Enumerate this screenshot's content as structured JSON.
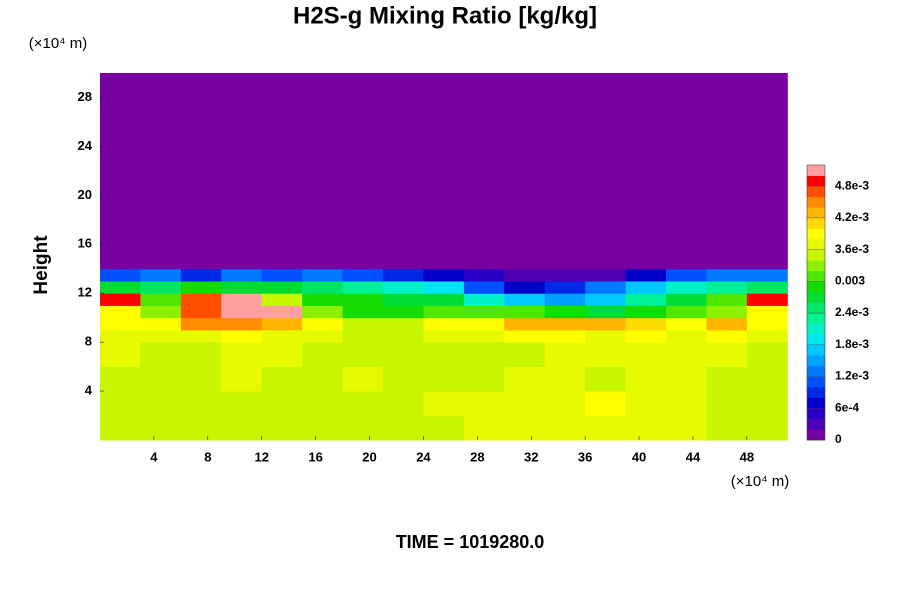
{
  "chart_data": {
    "type": "heatmap",
    "title": "H2S-g Mixing Ratio [kg/kg]",
    "y_label": "Height",
    "y_unit": "(×10⁴ m)",
    "x_unit": "(×10⁴ m)",
    "footer": "TIME = 1019280.0",
    "xlim": [
      0,
      51.2
    ],
    "ylim": [
      0,
      30
    ],
    "xticks": [
      4,
      8,
      12,
      16,
      20,
      24,
      28,
      32,
      36,
      40,
      44,
      48
    ],
    "yticks": [
      4,
      8,
      12,
      16,
      20,
      24,
      28
    ],
    "x_edges": [
      0,
      3,
      6,
      9,
      12,
      15,
      18,
      21,
      24,
      27,
      30,
      33,
      36,
      39,
      42,
      45,
      48,
      51
    ],
    "y_edges": [
      0,
      2,
      4,
      6,
      8,
      9,
      10,
      11,
      12,
      13,
      14,
      30
    ],
    "z": [
      [
        0.0035,
        0.0035,
        0.0035,
        0.0035,
        0.0035,
        0.0035,
        0.0035,
        0.0035,
        0.0035,
        0.0036,
        0.0037,
        0.0037,
        0.0037,
        0.0037,
        0.0036,
        0.0035,
        0.0035
      ],
      [
        0.0035,
        0.0035,
        0.0035,
        0.0035,
        0.0035,
        0.0035,
        0.0035,
        0.0035,
        0.0036,
        0.0037,
        0.0037,
        0.0037,
        0.0038,
        0.0037,
        0.0037,
        0.0035,
        0.0035
      ],
      [
        0.0035,
        0.0035,
        0.0035,
        0.0036,
        0.0035,
        0.0035,
        0.0036,
        0.0035,
        0.0035,
        0.0035,
        0.0036,
        0.0036,
        0.0035,
        0.0037,
        0.0036,
        0.0035,
        0.0035
      ],
      [
        0.0036,
        0.0035,
        0.0035,
        0.0037,
        0.0036,
        0.0035,
        0.0035,
        0.0034,
        0.0035,
        0.0035,
        0.0035,
        0.0036,
        0.0037,
        0.0036,
        0.0037,
        0.0036,
        0.0035
      ],
      [
        0.0037,
        0.0036,
        0.0037,
        0.0038,
        0.0037,
        0.0036,
        0.0035,
        0.0035,
        0.0036,
        0.0037,
        0.0038,
        0.0038,
        0.0037,
        0.0038,
        0.0037,
        0.0038,
        0.0037
      ],
      [
        0.0038,
        0.0039,
        0.0044,
        0.0044,
        0.0042,
        0.0038,
        0.0034,
        0.0034,
        0.0038,
        0.0038,
        0.0042,
        0.0043,
        0.0042,
        0.0041,
        0.0039,
        0.0043,
        0.0038
      ],
      [
        0.0039,
        0.0033,
        0.0046,
        0.0051,
        0.0051,
        0.0032,
        0.0029,
        0.0028,
        0.003,
        0.0031,
        0.003,
        0.0028,
        0.0027,
        0.0029,
        0.0031,
        0.0033,
        0.0038
      ],
      [
        0.0048,
        0.003,
        0.0046,
        0.0051,
        0.0034,
        0.0029,
        0.0028,
        0.0027,
        0.0026,
        0.002,
        0.0016,
        0.0014,
        0.0016,
        0.0022,
        0.0026,
        0.003,
        0.0048
      ],
      [
        0.0026,
        0.0024,
        0.0028,
        0.0027,
        0.0026,
        0.0024,
        0.0022,
        0.002,
        0.0018,
        0.001,
        0.0006,
        0.0008,
        0.0012,
        0.0016,
        0.002,
        0.0022,
        0.0024
      ],
      [
        0.001,
        0.0012,
        0.0008,
        0.0012,
        0.001,
        0.0012,
        0.001,
        0.0008,
        0.0006,
        0.0004,
        0.0002,
        0.0002,
        0.0002,
        0.0006,
        0.001,
        0.0012,
        0.0012
      ],
      [
        0,
        0,
        0,
        0,
        0,
        0,
        0,
        0,
        0,
        0,
        0,
        0,
        0,
        0,
        0,
        0,
        0
      ]
    ],
    "colorbar": {
      "lim": [
        0,
        0.0052
      ],
      "ticks": [
        0,
        {
          "value": 0.0006,
          "label": "6e-4"
        },
        {
          "value": 0.0012,
          "label": "1.2e-3"
        },
        {
          "value": 0.0018,
          "label": "1.8e-3"
        },
        {
          "value": 0.0024,
          "label": "2.4e-3"
        },
        0.003,
        {
          "value": 0.0036,
          "label": "3.6e-3"
        },
        {
          "value": 0.0042,
          "label": "4.2e-3"
        },
        {
          "value": 0.0048,
          "label": "4.8e-3"
        }
      ],
      "colors": [
        "#7800a0",
        "#5000b4",
        "#2800c8",
        "#0000c8",
        "#0028e6",
        "#0050ff",
        "#0078ff",
        "#00a0ff",
        "#00c8ff",
        "#00e6f0",
        "#00f0c8",
        "#00f096",
        "#00e664",
        "#00dc32",
        "#14dc00",
        "#50e600",
        "#8cf000",
        "#c8f500",
        "#e6fa00",
        "#ffff00",
        "#ffdc00",
        "#ffb400",
        "#ff8c00",
        "#ff5000",
        "#ff0000",
        "#ffa0a0"
      ]
    }
  }
}
